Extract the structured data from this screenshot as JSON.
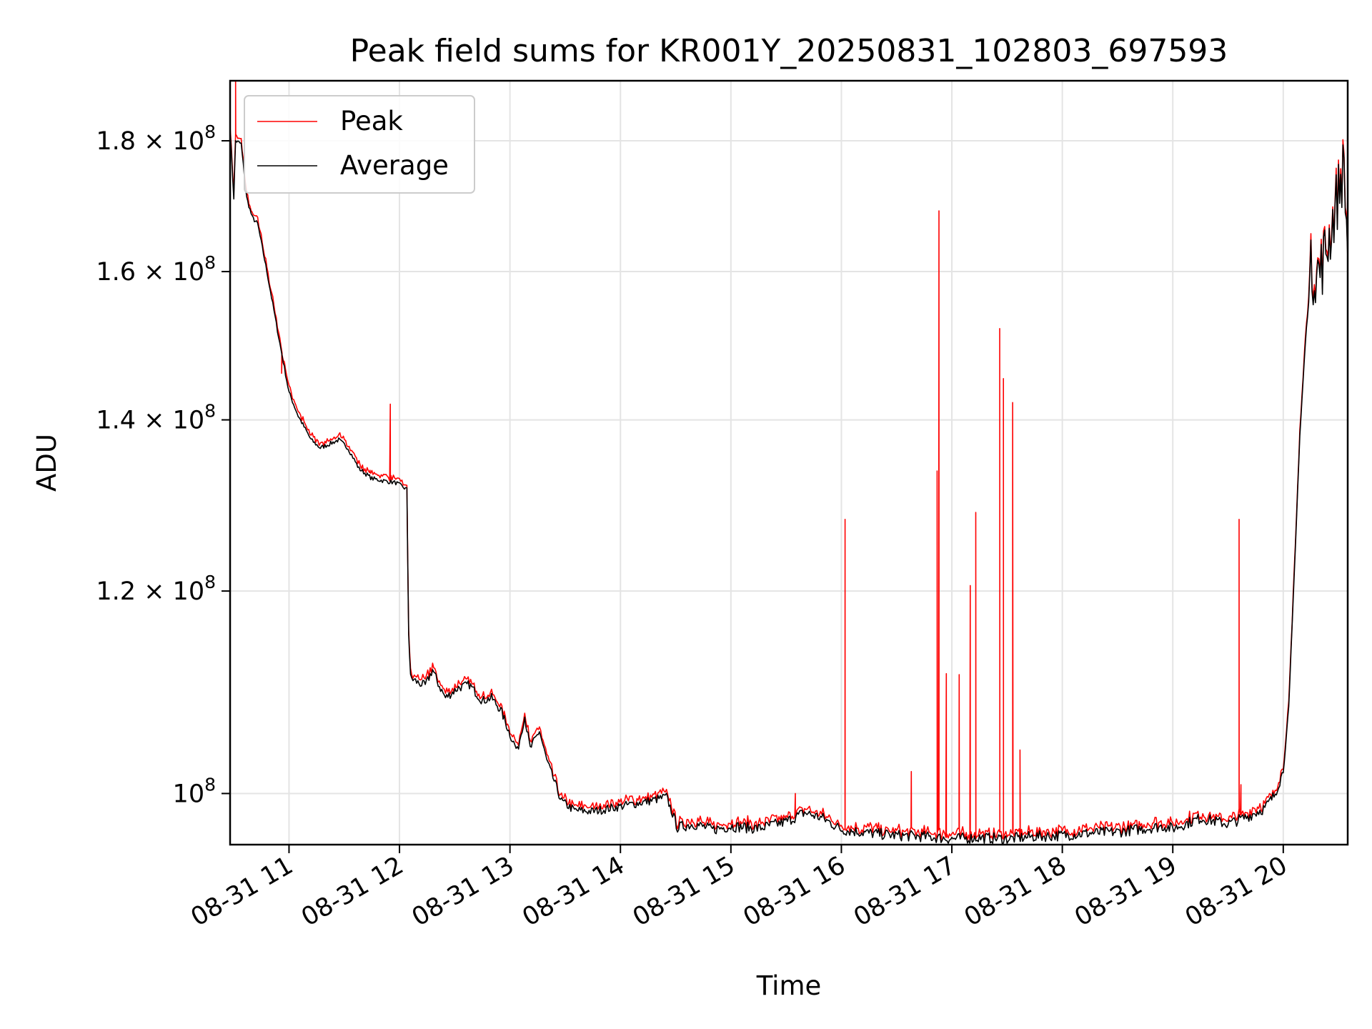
{
  "chart_data": {
    "type": "line",
    "title": "Peak field sums for KR001Y_20250831_102803_697593",
    "xlabel": "Time",
    "ylabel": "ADU",
    "y_scale": "log",
    "grid": true,
    "legend_position": "upper-left",
    "xlim": [
      "2025-08-31 10:28",
      "2025-08-31 20:35"
    ],
    "ylim": [
      95500000,
      190000000
    ],
    "x_ticks": [
      "08-31 11",
      "08-31 12",
      "08-31 13",
      "08-31 14",
      "08-31 15",
      "08-31 16",
      "08-31 17",
      "08-31 18",
      "08-31 19",
      "08-31 20"
    ],
    "y_ticks": [
      {
        "value": 100000000,
        "mantissa": "",
        "exponent": "8"
      },
      {
        "value": 120000000,
        "mantissa": "1.2",
        "exponent": "8"
      },
      {
        "value": 140000000,
        "mantissa": "1.4",
        "exponent": "8"
      },
      {
        "value": 160000000,
        "mantissa": "1.6",
        "exponent": "8"
      },
      {
        "value": 180000000,
        "mantissa": "1.8",
        "exponent": "8"
      }
    ],
    "series": [
      {
        "name": "Peak",
        "color": "#ff0000"
      },
      {
        "name": "Average",
        "color": "#000000"
      }
    ],
    "average_points": [
      [
        "2025-08-31 10:28",
        182000000
      ],
      [
        "2025-08-31 10:30",
        171000000
      ],
      [
        "2025-08-31 10:31",
        180000000
      ],
      [
        "2025-08-31 10:34",
        179500000
      ],
      [
        "2025-08-31 10:37",
        171000000
      ],
      [
        "2025-08-31 10:40",
        168000000
      ],
      [
        "2025-08-31 10:43",
        167000000
      ],
      [
        "2025-08-31 10:48",
        160000000
      ],
      [
        "2025-08-31 10:55",
        150000000
      ],
      [
        "2025-08-31 11:00",
        143500000
      ],
      [
        "2025-08-31 11:05",
        140500000
      ],
      [
        "2025-08-31 11:12",
        137500000
      ],
      [
        "2025-08-31 11:17",
        136500000
      ],
      [
        "2025-08-31 11:22",
        137000000
      ],
      [
        "2025-08-31 11:27",
        137500000
      ],
      [
        "2025-08-31 11:32",
        136500000
      ],
      [
        "2025-08-31 11:38",
        134000000
      ],
      [
        "2025-08-31 11:45",
        132800000
      ],
      [
        "2025-08-31 11:52",
        132500000
      ],
      [
        "2025-08-31 11:58",
        132300000
      ],
      [
        "2025-08-31 12:04",
        131500000
      ],
      [
        "2025-08-31 12:05",
        115500000
      ],
      [
        "2025-08-31 12:06",
        111000000
      ],
      [
        "2025-08-31 12:10",
        110500000
      ],
      [
        "2025-08-31 12:14",
        110200000
      ],
      [
        "2025-08-31 12:18",
        111800000
      ],
      [
        "2025-08-31 12:21",
        110400000
      ],
      [
        "2025-08-31 12:25",
        109000000
      ],
      [
        "2025-08-31 12:32",
        110000000
      ],
      [
        "2025-08-31 12:38",
        110300000
      ],
      [
        "2025-08-31 12:45",
        108700000
      ],
      [
        "2025-08-31 12:50",
        109000000
      ],
      [
        "2025-08-31 12:55",
        107800000
      ],
      [
        "2025-08-31 13:00",
        105500000
      ],
      [
        "2025-08-31 13:04",
        103900000
      ],
      [
        "2025-08-31 13:08",
        107200000
      ],
      [
        "2025-08-31 13:11",
        104100000
      ],
      [
        "2025-08-31 13:16",
        105800000
      ],
      [
        "2025-08-31 13:20",
        103000000
      ],
      [
        "2025-08-31 13:28",
        99300000
      ],
      [
        "2025-08-31 13:35",
        98500000
      ],
      [
        "2025-08-31 13:45",
        98400000
      ],
      [
        "2025-08-31 13:55",
        98700000
      ],
      [
        "2025-08-31 14:05",
        99000000
      ],
      [
        "2025-08-31 14:15",
        99300000
      ],
      [
        "2025-08-31 14:25",
        99700000
      ],
      [
        "2025-08-31 14:31",
        97000000
      ],
      [
        "2025-08-31 14:40",
        97300000
      ],
      [
        "2025-08-31 14:50",
        96800000
      ],
      [
        "2025-08-31 15:00",
        97100000
      ],
      [
        "2025-08-31 15:15",
        96900000
      ],
      [
        "2025-08-31 15:30",
        97500000
      ],
      [
        "2025-08-31 15:40",
        98300000
      ],
      [
        "2025-08-31 15:50",
        97800000
      ],
      [
        "2025-08-31 16:00",
        96800000
      ],
      [
        "2025-08-31 16:15",
        96500000
      ],
      [
        "2025-08-31 16:30",
        96300000
      ],
      [
        "2025-08-31 16:45",
        96200000
      ],
      [
        "2025-08-31 17:00",
        96000000
      ],
      [
        "2025-08-31 17:15",
        96100000
      ],
      [
        "2025-08-31 17:30",
        96000000
      ],
      [
        "2025-08-31 17:45",
        96200000
      ],
      [
        "2025-08-31 18:00",
        96300000
      ],
      [
        "2025-08-31 18:15",
        96500000
      ],
      [
        "2025-08-31 18:30",
        96600000
      ],
      [
        "2025-08-31 18:45",
        96900000
      ],
      [
        "2025-08-31 18:55",
        97100000
      ],
      [
        "2025-08-31 19:00",
        96900000
      ],
      [
        "2025-08-31 19:15",
        97800000
      ],
      [
        "2025-08-31 19:30",
        97300000
      ],
      [
        "2025-08-31 19:40",
        97900000
      ],
      [
        "2025-08-31 19:50",
        98700000
      ],
      [
        "2025-08-31 19:55",
        99800000
      ],
      [
        "2025-08-31 20:00",
        102000000
      ],
      [
        "2025-08-31 20:03",
        108000000
      ],
      [
        "2025-08-31 20:06",
        122000000
      ],
      [
        "2025-08-31 20:09",
        138000000
      ],
      [
        "2025-08-31 20:12",
        150000000
      ],
      [
        "2025-08-31 20:15",
        160000000
      ],
      [
        "2025-08-31 20:20",
        160000000
      ],
      [
        "2025-08-31 20:25",
        165000000
      ],
      [
        "2025-08-31 20:30",
        172000000
      ],
      [
        "2025-08-31 20:33",
        176000000
      ],
      [
        "2025-08-31 20:35",
        162000000
      ]
    ],
    "peak_spikes": [
      [
        "2025-08-31 10:31",
        190000000
      ],
      [
        "2025-08-31 10:56",
        146000000
      ],
      [
        "2025-08-31 11:44",
        133800000
      ],
      [
        "2025-08-31 11:55",
        142000000
      ],
      [
        "2025-08-31 15:35",
        100000000
      ],
      [
        "2025-08-31 16:02",
        128000000
      ],
      [
        "2025-08-31 16:38",
        102000000
      ],
      [
        "2025-08-31 16:52",
        133700000
      ],
      [
        "2025-08-31 16:53",
        169000000
      ],
      [
        "2025-08-31 16:57",
        111400000
      ],
      [
        "2025-08-31 17:04",
        111300000
      ],
      [
        "2025-08-31 17:10",
        120600000
      ],
      [
        "2025-08-31 17:13",
        128800000
      ],
      [
        "2025-08-31 17:26",
        152000000
      ],
      [
        "2025-08-31 17:28",
        145300000
      ],
      [
        "2025-08-31 17:33",
        142200000
      ],
      [
        "2025-08-31 17:37",
        104000000
      ],
      [
        "2025-08-31 19:36",
        128000000
      ],
      [
        "2025-08-31 19:37",
        100800000
      ]
    ],
    "legend": {
      "Peak": "Peak",
      "Average": "Average"
    }
  }
}
